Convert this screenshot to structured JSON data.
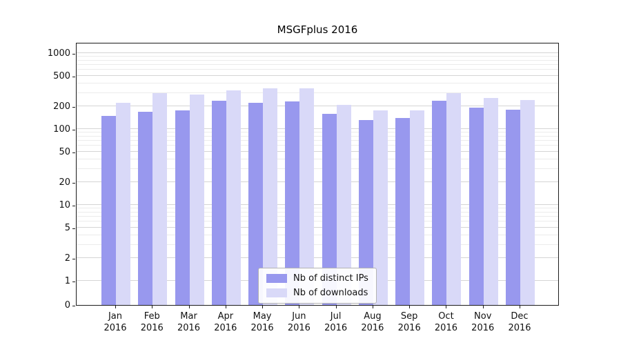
{
  "title": "MSGFplus 2016",
  "chart_data": {
    "type": "bar",
    "title": "MSGFplus 2016",
    "yscale": "symlog",
    "grid": true,
    "legend_position": "lower center",
    "ylim": [
      0,
      1400
    ],
    "yticks": [
      0,
      1,
      2,
      5,
      10,
      20,
      50,
      100,
      200,
      500,
      1000
    ],
    "year": "2016",
    "months": [
      "Jan",
      "Feb",
      "Mar",
      "Apr",
      "May",
      "Jun",
      "Jul",
      "Aug",
      "Sep",
      "Oct",
      "Nov",
      "Dec"
    ],
    "categories": [
      "Jan 2016",
      "Feb 2016",
      "Mar 2016",
      "Apr 2016",
      "May 2016",
      "Jun 2016",
      "Jul 2016",
      "Aug 2016",
      "Sep 2016",
      "Oct 2016",
      "Nov 2016",
      "Dec 2016"
    ],
    "series": [
      {
        "name": "Nb of distinct IPs",
        "color": "#9898ee",
        "values": [
          150,
          170,
          175,
          235,
          220,
          230,
          160,
          130,
          140,
          235,
          190,
          180
        ]
      },
      {
        "name": "Nb of downloads",
        "color": "#d9d9f8",
        "values": [
          220,
          300,
          285,
          325,
          345,
          345,
          210,
          175,
          175,
          300,
          255,
          240
        ]
      }
    ]
  }
}
